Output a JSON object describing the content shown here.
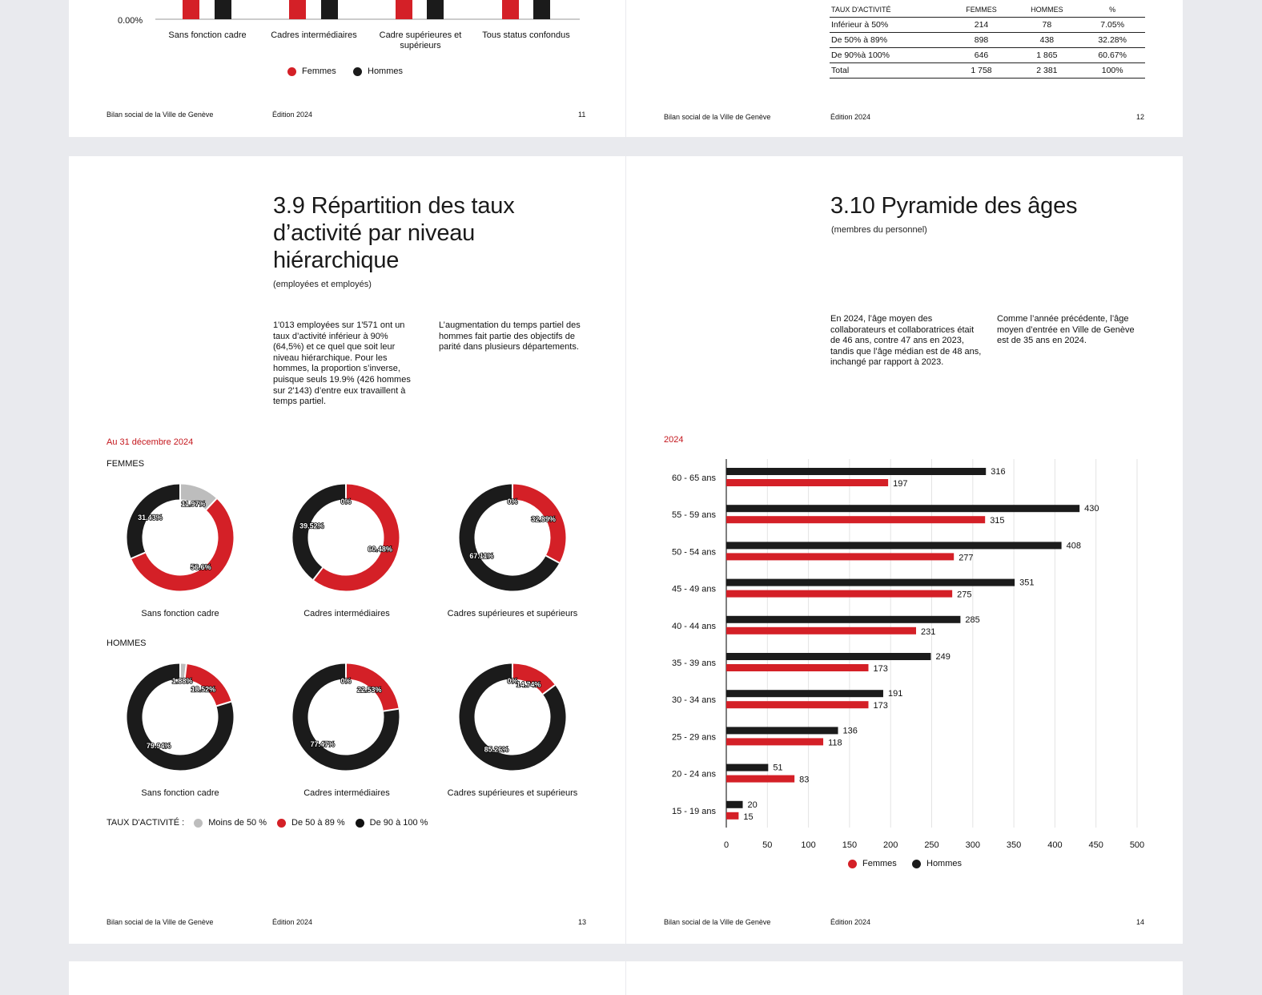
{
  "colors": {
    "femmes": "#d42027",
    "hommes": "#1b1b1b",
    "moins50": "#bdbdbd",
    "accent": "#c4161c"
  },
  "footer": {
    "org": "Bilan social de la Ville de Genève",
    "edition": "Édition 2024"
  },
  "page11": {
    "page_number": "11",
    "y_tick": "0.00%",
    "categories": [
      "Sans fonction cadre",
      "Cadres intermédiaires",
      "Cadre supérieures et supérieurs",
      "Tous status confondus"
    ],
    "legend": {
      "femmes": "Femmes",
      "hommes": "Hommes"
    }
  },
  "page12": {
    "page_number": "12",
    "table": {
      "headers": [
        "TAUX D'ACTIVITÉ",
        "FEMMES",
        "HOMMES",
        "%"
      ],
      "rows": [
        [
          "Inférieur à 50%",
          "214",
          "78",
          "7.05%"
        ],
        [
          "De 50% à 89%",
          "898",
          "438",
          "32.28%"
        ],
        [
          "De 90%à 100%",
          "646",
          "1 865",
          "60.67%"
        ],
        [
          "Total",
          "1 758",
          "2 381",
          "100%"
        ]
      ]
    }
  },
  "page13": {
    "page_number": "13",
    "title_lines": [
      "3.9 Répartition des taux",
      "d’activité par niveau",
      "hiérarchique"
    ],
    "subtitle": "(employées et employés)",
    "para_left": "1'013 employées sur 1'571 ont un taux d’activité inférieur à 90% (64,5%) et ce quel que soit leur niveau hiérarchique. Pour les hommes, la proportion s’inverse, puisque seuls 19.9% (426 hommes sur 2'143) d’entre eux travaillent à temps partiel.",
    "para_right": "L’augmentation du temps partiel des hommes fait partie des objectifs de parité dans plusieurs départements.",
    "date_label": "Au 31 décembre 2024",
    "femmes_label": "FEMMES",
    "hommes_label": "HOMMES",
    "legend_title": "TAUX D'ACTIVITÉ :",
    "legend": [
      "Moins de 50 %",
      "De 50 à 89 %",
      "De 90 à 100 %"
    ]
  },
  "chart_data": [
    {
      "type": "pie",
      "group": "FEMMES",
      "series_labels": [
        "Moins de 50 %",
        "De 50 à 89 %",
        "De 90 à 100 %"
      ],
      "charts": [
        {
          "caption": "Sans fonction cadre",
          "values": [
            11.97,
            56.6,
            31.43
          ],
          "labels": [
            "11.97%",
            "56.6%",
            "31.43%"
          ]
        },
        {
          "caption": "Cadres intermédiaires",
          "values": [
            0,
            60.48,
            39.52
          ],
          "labels": [
            "0%",
            "60.48%",
            "39.52%"
          ]
        },
        {
          "caption": "Cadres supérieures et supérieurs",
          "values": [
            0,
            32.89,
            67.11
          ],
          "labels": [
            "0%",
            "32.89%",
            "67.11%"
          ]
        }
      ]
    },
    {
      "type": "pie",
      "group": "HOMMES",
      "series_labels": [
        "Moins de 50 %",
        "De 50 à 89 %",
        "De 90 à 100 %"
      ],
      "charts": [
        {
          "caption": "Sans fonction cadre",
          "values": [
            1.88,
            18.52,
            79.94
          ],
          "labels": [
            "1.88%",
            "18.52%",
            "79.94%"
          ]
        },
        {
          "caption": "Cadres intermédiaires",
          "values": [
            0,
            22.53,
            77.47
          ],
          "labels": [
            "0%",
            "22.53%",
            "77.47%"
          ]
        },
        {
          "caption": "Cadres supérieures et supérieurs",
          "values": [
            0,
            14.74,
            85.26
          ],
          "labels": [
            "0%",
            "14.74%",
            "85.26%"
          ]
        }
      ]
    },
    {
      "type": "bar",
      "orientation": "horizontal",
      "title": "3.10 Pyramide des âges",
      "categories": [
        "60 - 65 ans",
        "55 - 59 ans",
        "50 - 54 ans",
        "45 - 49 ans",
        "40 - 44 ans",
        "35 - 39 ans",
        "30 - 34 ans",
        "25 - 29 ans",
        "20 - 24 ans",
        "15 - 19 ans"
      ],
      "series": [
        {
          "name": "Hommes",
          "values": [
            316,
            430,
            408,
            351,
            285,
            249,
            191,
            136,
            51,
            20
          ]
        },
        {
          "name": "Femmes",
          "values": [
            197,
            315,
            277,
            275,
            231,
            173,
            173,
            118,
            83,
            15
          ]
        }
      ],
      "xlim": [
        0,
        500
      ],
      "xticks": [
        0,
        50,
        100,
        150,
        200,
        250,
        300,
        350,
        400,
        450,
        500
      ],
      "grid": true,
      "legend_placement": "bottom"
    }
  ],
  "page14": {
    "page_number": "14",
    "title": "3.10 Pyramide des âges",
    "subtitle": "(membres du personnel)",
    "para_left": "En 2024, l’âge moyen des collaborateurs et collaboratrices était de 46 ans, contre 47 ans en 2023, tandis que l’âge médian est de 48 ans, inchangé par rapport à 2023.",
    "para_right": "Comme l’année précédente, l’âge moyen d’entrée en Ville de Genève est de 35 ans en 2024.",
    "year_label": "2024",
    "legend": {
      "femmes": "Femmes",
      "hommes": "Hommes"
    }
  }
}
